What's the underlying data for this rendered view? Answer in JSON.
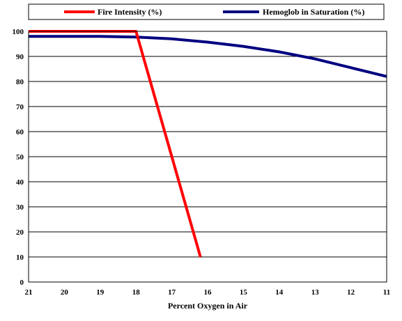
{
  "chart_data": {
    "type": "line",
    "title": "",
    "xlabel": "Percent Oxygen in Air",
    "ylabel": "",
    "x_ticks": [
      21,
      20,
      19,
      18,
      17,
      16,
      15,
      14,
      13,
      12,
      11
    ],
    "y_ticks": [
      0,
      10,
      20,
      30,
      40,
      50,
      60,
      70,
      80,
      90,
      100
    ],
    "xlim": [
      21,
      11
    ],
    "ylim": [
      0,
      100
    ],
    "grid": "horizontal",
    "legend_position": "top",
    "series": [
      {
        "name": "Fire Intensity (%)",
        "color": "#ff0000",
        "x": [
          21,
          18,
          16.2
        ],
        "y": [
          100,
          100,
          10
        ]
      },
      {
        "name": "Hemoglob in Saturation (%)",
        "color": "#000080",
        "x": [
          21,
          20,
          19,
          18,
          17,
          16,
          15,
          14,
          13,
          12,
          11
        ],
        "y": [
          98,
          98,
          98,
          97.7,
          97,
          95.7,
          94,
          91.8,
          89,
          85.5,
          82
        ]
      }
    ]
  }
}
